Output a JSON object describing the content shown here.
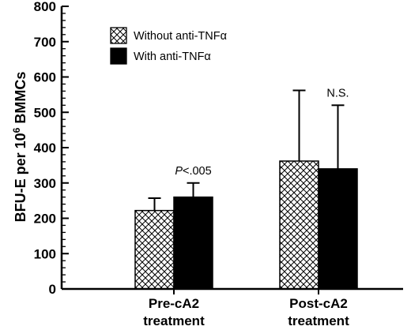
{
  "chart_data": {
    "type": "bar",
    "categories": [
      [
        "Pre-cA2",
        "treatment"
      ],
      [
        "Post-cA2",
        "treatment"
      ]
    ],
    "series": [
      {
        "name": "Without anti-TNFα",
        "pattern": "crosshatch",
        "values": [
          222,
          362
        ],
        "errors": [
          35,
          200
        ]
      },
      {
        "name": "With anti-TNFα",
        "pattern": "solid",
        "values": [
          260,
          340
        ],
        "errors": [
          40,
          180
        ]
      }
    ],
    "ylabel_main": "BFU-E per 10",
    "ylabel_sup": "6",
    "ylabel_tail": " BMMCs",
    "ylim": [
      0,
      800
    ],
    "yticks": [
      0,
      100,
      200,
      300,
      400,
      500,
      600,
      700,
      800
    ],
    "annotations": [
      {
        "category": 0,
        "series": 1,
        "italic": "P",
        "text": "<.005"
      },
      {
        "category": 1,
        "series": 1,
        "italic": "",
        "text": "N.S."
      }
    ],
    "legend_position": "top-left",
    "colors": {
      "solid": "#000000",
      "hatch": "#000000",
      "background": "#ffffff"
    }
  }
}
